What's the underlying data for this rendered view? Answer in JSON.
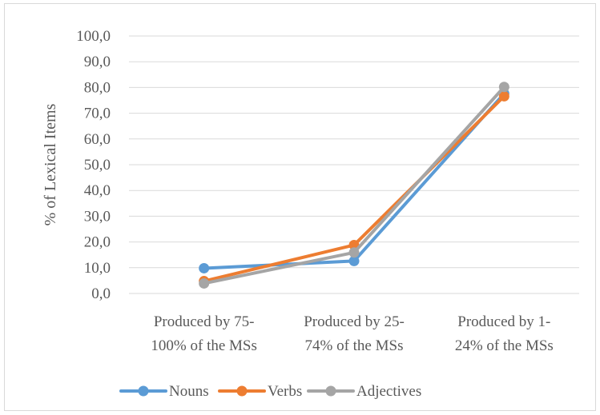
{
  "chart_data": {
    "type": "line",
    "categories": [
      [
        "Produced by 75-",
        "100% of the MSs"
      ],
      [
        "Produced by 25-",
        "74% of the MSs"
      ],
      [
        "Produced by 1-",
        "24% of the MSs"
      ]
    ],
    "series": [
      {
        "name": "Nouns",
        "values": [
          9.8,
          12.6,
          77.6
        ],
        "color": "#5b9bd5"
      },
      {
        "name": "Verbs",
        "values": [
          4.8,
          18.8,
          76.6
        ],
        "color": "#ed7d31"
      },
      {
        "name": "Adjectives",
        "values": [
          3.9,
          15.9,
          80.2
        ],
        "color": "#a5a5a5"
      }
    ],
    "ylabel": "% of Lexical Items",
    "ylim": [
      0,
      100
    ],
    "yticks": [
      "0,0",
      "10,0",
      "20,0",
      "30,0",
      "40,0",
      "50,0",
      "60,0",
      "70,0",
      "80,0",
      "90,0",
      "100,0"
    ],
    "grid": true,
    "legend_position": "bottom",
    "gridline_color": "#d9d9d9"
  }
}
